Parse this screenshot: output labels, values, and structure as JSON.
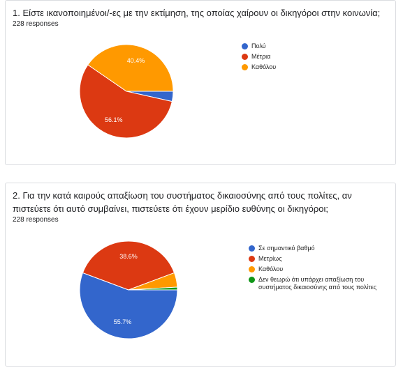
{
  "chart_data": [
    {
      "type": "pie",
      "title": "1. Είστε ικανοποιημένοι/-ες με την εκτίμηση, της οποίας χαίρουν οι δικηγόροι στην κοινωνία;",
      "subtitle": "228 responses",
      "categories": [
        "Πολύ",
        "Μέτρια",
        "Καθόλου"
      ],
      "values": [
        3.5,
        56.1,
        40.4
      ],
      "value_labels": [
        null,
        "56.1%",
        "40.4%"
      ],
      "colors": [
        "#3366cc",
        "#dc3912",
        "#ff9900"
      ]
    },
    {
      "type": "pie",
      "title": "2. Για την κατά καιρούς απαξίωση του συστήματος δικαιοσύνης από τους πολίτες, αν πιστεύετε ότι αυτό συμβαίνει, πιστεύετε ότι έχουν μερίδιο ευθύνης οι δικηγόροι;",
      "subtitle": "228 responses",
      "categories": [
        "Σε σημαντικό βαθμό",
        "Μετρίως",
        "Καθόλου",
        "Δεν θεωρώ ότι υπάρχει απαξίωση του συστήματος δικαιοσύνης από τους πολίτες"
      ],
      "values": [
        55.7,
        38.6,
        4.8,
        0.9
      ],
      "value_labels": [
        "55.7%",
        "38.6%",
        null,
        null
      ],
      "colors": [
        "#3366cc",
        "#dc3912",
        "#ff9900",
        "#109618"
      ]
    }
  ]
}
